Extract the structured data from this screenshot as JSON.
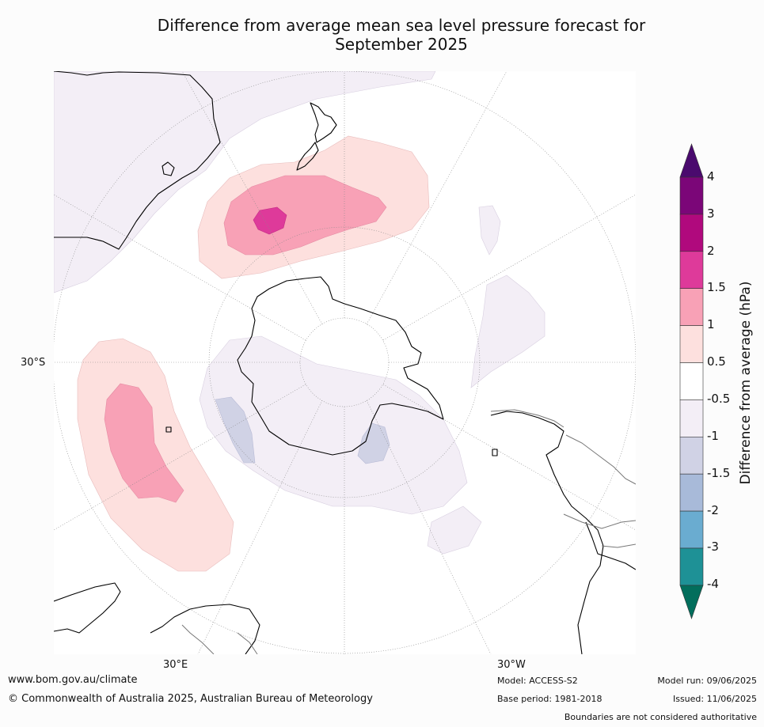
{
  "title_line1": "Difference from average mean sea level pressure forecast for",
  "title_line2": "September 2025",
  "map": {
    "projection": "south-polar-stereographic",
    "lat_labels": [
      "30°S"
    ],
    "lon_labels": [
      "30°E",
      "30°W"
    ],
    "graticule_style": "dotted"
  },
  "colorbar": {
    "label": "Difference from average (hPa)",
    "ticks": [
      "4",
      "3",
      "2",
      "1.5",
      "1",
      "0.5",
      "-0.5",
      "-1",
      "-1.5",
      "-2",
      "-3",
      "-4"
    ],
    "bins": [
      {
        "range": ">4",
        "color": "#4a0a6e"
      },
      {
        "range": "3 to 4",
        "color": "#7b0678"
      },
      {
        "range": "2 to 3",
        "color": "#b0097d"
      },
      {
        "range": "1.5 to 2",
        "color": "#de3a9a"
      },
      {
        "range": "1 to 1.5",
        "color": "#f8a1b6"
      },
      {
        "range": "0.5 to 1",
        "color": "#fde0de"
      },
      {
        "range": "-0.5 to 0.5",
        "color": "#ffffff"
      },
      {
        "range": "-1 to -0.5",
        "color": "#f3eef6"
      },
      {
        "range": "-1.5 to -1",
        "color": "#d0d2e5"
      },
      {
        "range": "-2 to -1.5",
        "color": "#a8bad9"
      },
      {
        "range": "-3 to -2",
        "color": "#6aacd0"
      },
      {
        "range": "-4 to -3",
        "color": "#1e9196"
      },
      {
        "range": "<-4",
        "color": "#026e5c"
      }
    ]
  },
  "anomalies": [
    {
      "region": "Tasman Sea / south of New Zealand",
      "peak_range": "1.5 to 2"
    },
    {
      "region": "Southern Indian Ocean",
      "peak_range": "1 to 1.5"
    },
    {
      "region": "Weddell Sea",
      "peak_range": "-1.5 to -1"
    },
    {
      "region": "Indian Ocean sector near Antarctica",
      "peak_range": "-1.5 to -1"
    }
  ],
  "footer": {
    "website": "www.bom.gov.au/climate",
    "copyright": "© Commonwealth of Australia 2025, Australian Bureau of Meteorology",
    "model": "Model: ACCESS-S2",
    "base_period": "Base period: 1981-2018",
    "model_run": "Model run: 09/06/2025",
    "issued": "Issued: 11/06/2025",
    "disclaimer": "Boundaries are not considered authoritative"
  }
}
